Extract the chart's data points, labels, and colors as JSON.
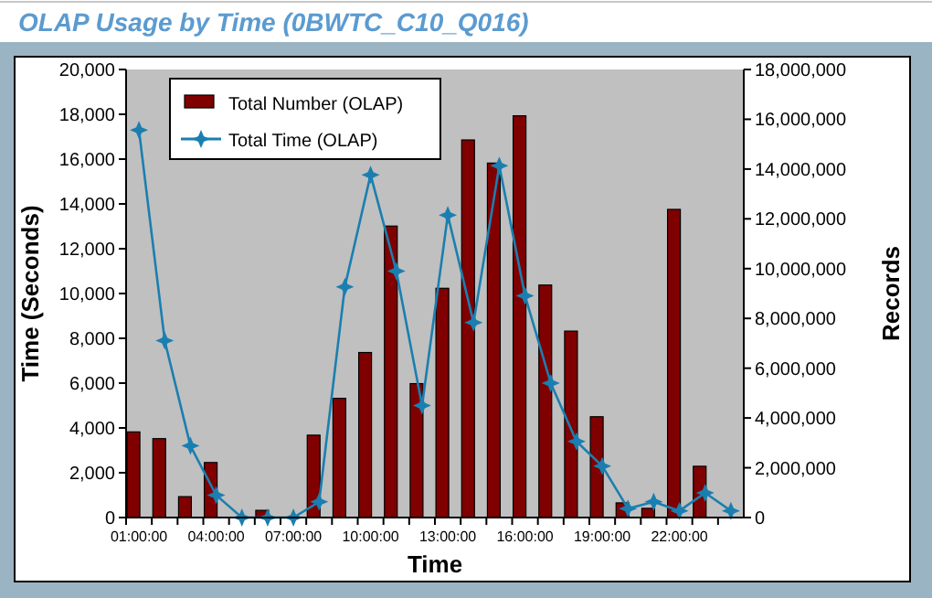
{
  "chart_data": {
    "type": "bar",
    "title": "OLAP Usage by Time (0BWTC_C10_Q016)",
    "xlabel": "Time",
    "ylabel": "Time (Seconds)",
    "y2label": "Records",
    "categories": [
      "01:00:00",
      null,
      null,
      "04:00:00",
      null,
      null,
      "07:00:00",
      null,
      null,
      "10:00:00",
      null,
      null,
      "13:00:00",
      null,
      null,
      "16:00:00",
      null,
      null,
      "19:00:00",
      null,
      null,
      "22:00:00",
      null,
      null
    ],
    "series": [
      {
        "name": "Total Number (OLAP)",
        "axis": "y2",
        "color": "#800000",
        "values": [
          3440000,
          3170000,
          840000,
          2210000,
          0,
          290000,
          0,
          3310000,
          4790000,
          6630000,
          11710000,
          5380000,
          9210000,
          15170000,
          14240000,
          16140000,
          9340000,
          7490000,
          4050000,
          590000,
          370000,
          12380000,
          2060000,
          0
        ]
      },
      {
        "name": "Total Time (OLAP)",
        "type": "line",
        "axis": "y",
        "color": "#1a7fb0",
        "marker": "star",
        "values": [
          17300,
          7900,
          3200,
          1000,
          0,
          0,
          0,
          700,
          10300,
          15300,
          11000,
          5000,
          13500,
          8700,
          15700,
          9900,
          6000,
          3400,
          2300,
          400,
          700,
          300,
          1100,
          300
        ]
      }
    ],
    "ylim": [
      0,
      20000
    ],
    "yticks": [
      {
        "value": 0,
        "label": "0"
      },
      {
        "value": 2000,
        "label": "2,000"
      },
      {
        "value": 4000,
        "label": "4,000"
      },
      {
        "value": 6000,
        "label": "6,000"
      },
      {
        "value": 8000,
        "label": "8,000"
      },
      {
        "value": 10000,
        "label": "10,000"
      },
      {
        "value": 12000,
        "label": "12,000"
      },
      {
        "value": 14000,
        "label": "14,000"
      },
      {
        "value": 16000,
        "label": "16,000"
      },
      {
        "value": 18000,
        "label": "18,000"
      },
      {
        "value": 20000,
        "label": "20,000"
      }
    ],
    "y2lim": [
      0,
      18000000
    ],
    "y2ticks": [
      {
        "value": 0,
        "label": "0"
      },
      {
        "value": 2000000,
        "label": "2,000,000"
      },
      {
        "value": 4000000,
        "label": "4,000,000"
      },
      {
        "value": 6000000,
        "label": "6,000,000"
      },
      {
        "value": 8000000,
        "label": "8,000,000"
      },
      {
        "value": 10000000,
        "label": "10,000,000"
      },
      {
        "value": 12000000,
        "label": "12,000,000"
      },
      {
        "value": 14000000,
        "label": "14,000,000"
      },
      {
        "value": 16000000,
        "label": "16,000,000"
      },
      {
        "value": 18000000,
        "label": "18,000,000"
      }
    ],
    "legend": "top left",
    "grid": false
  }
}
